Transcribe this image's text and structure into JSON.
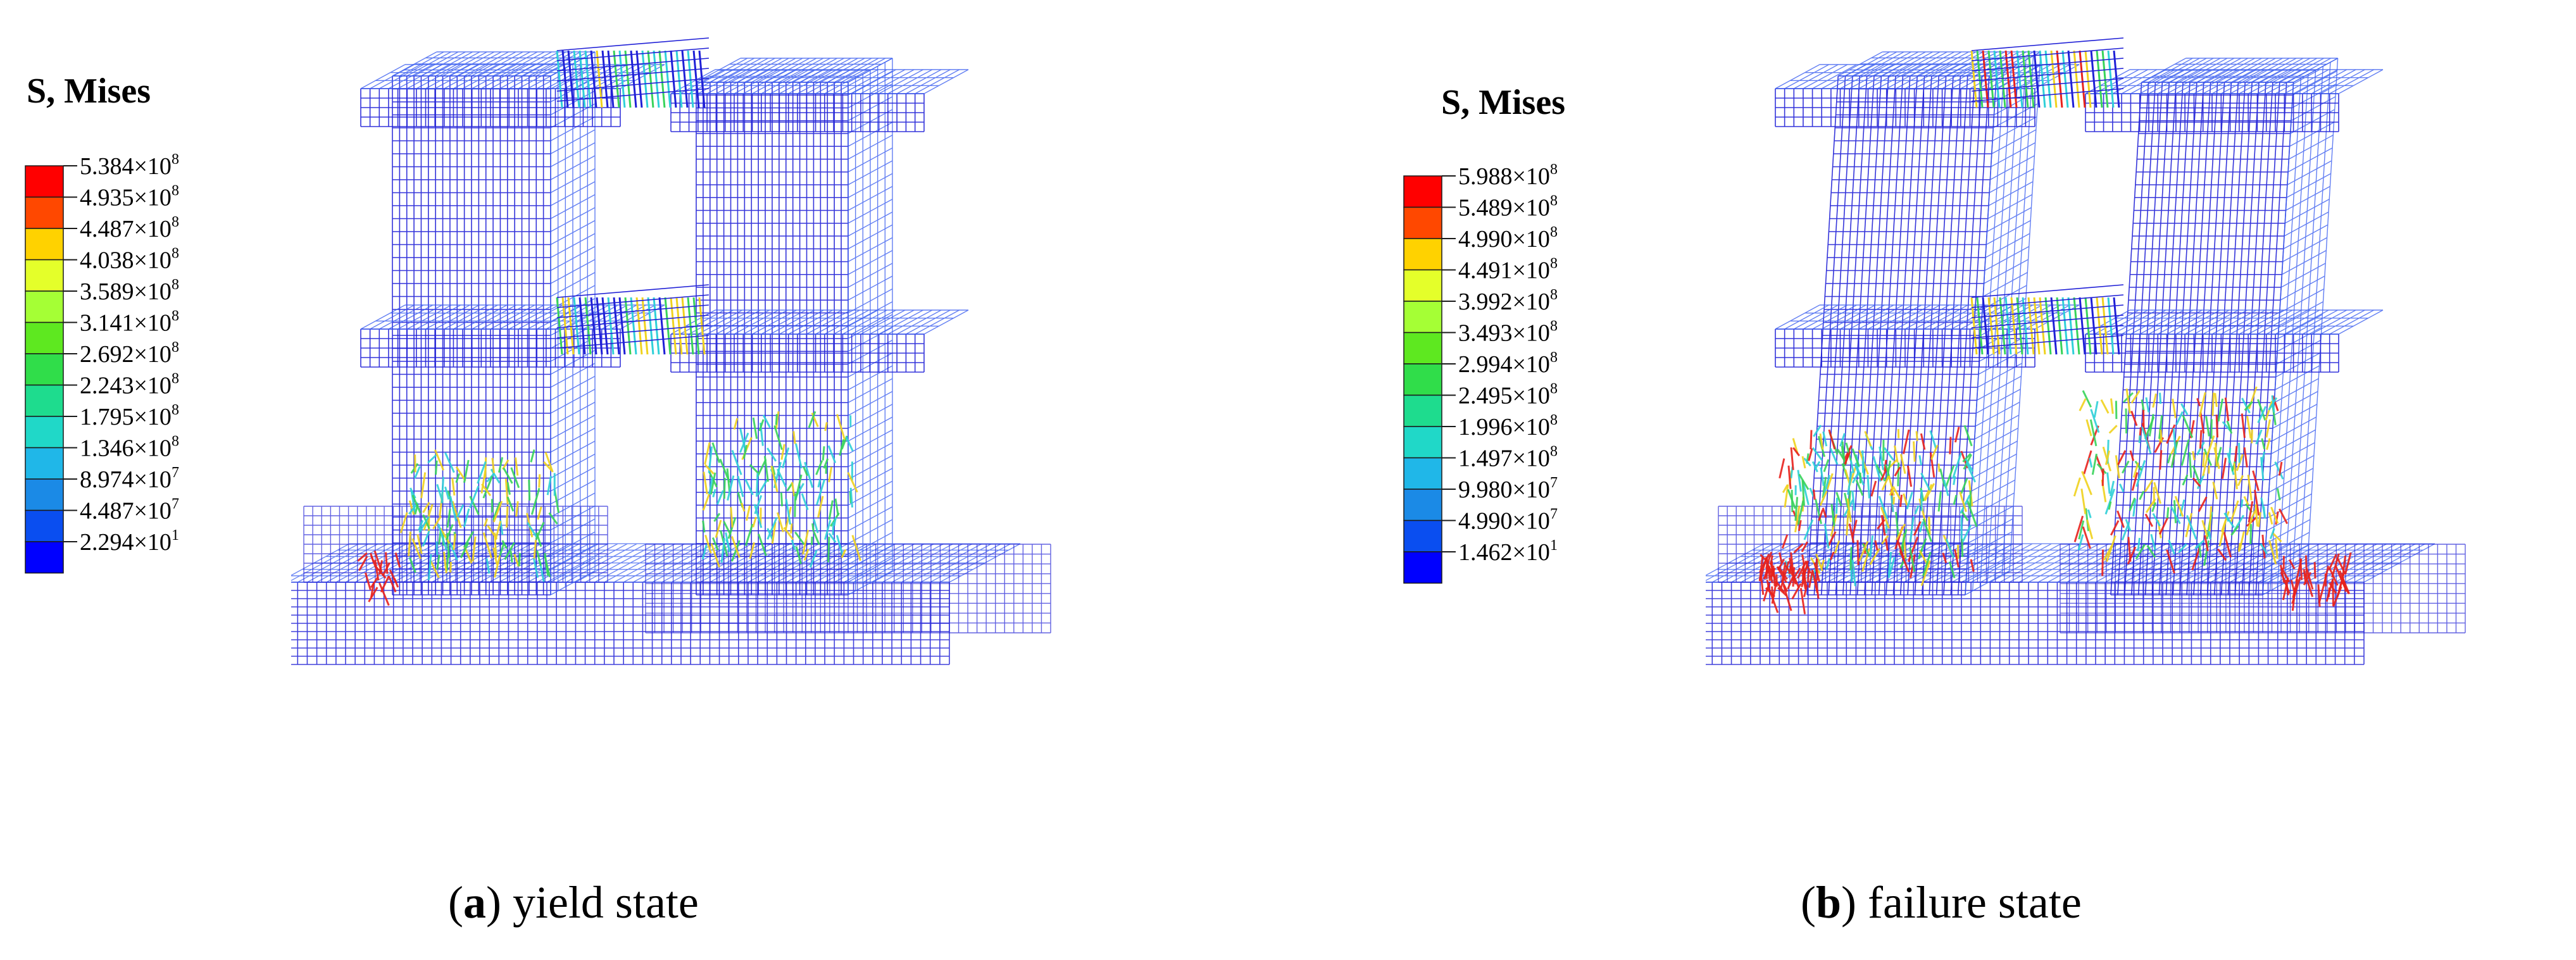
{
  "figure": {
    "panels": [
      {
        "id": "a",
        "legend_title": "S, Mises",
        "legend_labels": [
          {
            "mant": "5.384",
            "exp": "8"
          },
          {
            "mant": "4.935",
            "exp": "8"
          },
          {
            "mant": "4.487",
            "exp": "8"
          },
          {
            "mant": "4.038",
            "exp": "8"
          },
          {
            "mant": "3.589",
            "exp": "8"
          },
          {
            "mant": "3.141",
            "exp": "8"
          },
          {
            "mant": "2.692",
            "exp": "8"
          },
          {
            "mant": "2.243",
            "exp": "8"
          },
          {
            "mant": "1.795",
            "exp": "8"
          },
          {
            "mant": "1.346",
            "exp": "8"
          },
          {
            "mant": "8.974",
            "exp": "7"
          },
          {
            "mant": "4.487",
            "exp": "7"
          },
          {
            "mant": "2.294",
            "exp": "1"
          }
        ],
        "caption_letter": "a",
        "caption_text": "yield state"
      },
      {
        "id": "b",
        "legend_title": "S, Mises",
        "legend_labels": [
          {
            "mant": "5.988",
            "exp": "8"
          },
          {
            "mant": "5.489",
            "exp": "8"
          },
          {
            "mant": "4.990",
            "exp": "8"
          },
          {
            "mant": "4.491",
            "exp": "8"
          },
          {
            "mant": "3.992",
            "exp": "8"
          },
          {
            "mant": "3.493",
            "exp": "8"
          },
          {
            "mant": "2.994",
            "exp": "8"
          },
          {
            "mant": "2.495",
            "exp": "8"
          },
          {
            "mant": "1.996",
            "exp": "8"
          },
          {
            "mant": "1.497",
            "exp": "8"
          },
          {
            "mant": "9.980",
            "exp": "7"
          },
          {
            "mant": "4.990",
            "exp": "7"
          },
          {
            "mant": "1.462",
            "exp": "1"
          }
        ],
        "caption_letter": "b",
        "caption_text": "failure state"
      }
    ],
    "times_sign": "×10",
    "colors": {
      "legend_scale": [
        "#ff0000",
        "#ff4800",
        "#ffd200",
        "#e4ff2a",
        "#a5ff35",
        "#5ee820",
        "#30dd4a",
        "#1edc8e",
        "#20d8c8",
        "#20b7e8",
        "#1b8ae6",
        "#0a4ef0",
        "#0000ff"
      ],
      "mesh_primary": "#1f1fd6",
      "mesh_secondary": "#3b5ff0",
      "hot_red": "#e8221c",
      "hot_yellow": "#f0d21e",
      "hot_green": "#38d35a",
      "hot_cyan": "#2fd0d8"
    }
  }
}
